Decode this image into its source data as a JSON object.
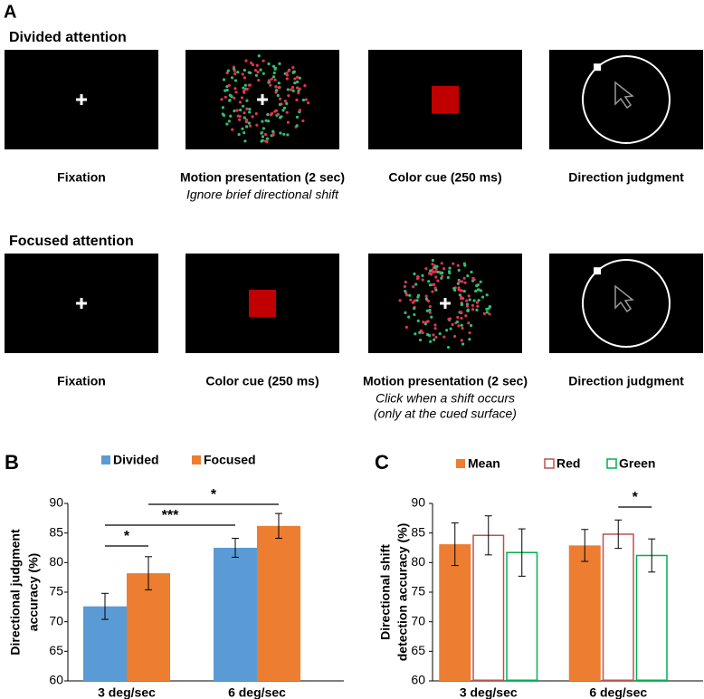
{
  "panel_a": {
    "label": "A",
    "rows": [
      {
        "title": "Divided attention",
        "screens": [
          {
            "caption": "Fixation"
          },
          {
            "caption": "Motion presentation (2 sec)",
            "note": [
              "Ignore brief directional shift"
            ]
          },
          {
            "caption": "Color cue (250 ms)"
          },
          {
            "caption": "Direction judgment"
          }
        ]
      },
      {
        "title": "Focused attention",
        "screens": [
          {
            "caption": "Fixation"
          },
          {
            "caption": "Color cue (250 ms)"
          },
          {
            "caption": "Motion presentation (2 sec)",
            "note": [
              "Click when a shift occurs",
              "(only at the cued surface)"
            ]
          },
          {
            "caption": "Direction judgment"
          }
        ]
      }
    ]
  },
  "chart_data": [
    {
      "type": "bar",
      "label": "B",
      "ylabel": [
        "Directional judgment",
        "accuracy (%)"
      ],
      "categories": [
        "3 deg/sec",
        "6 deg/sec"
      ],
      "series": [
        {
          "name": "Divided",
          "color": "#5b9bd5",
          "filled": true,
          "values": [
            72.6,
            82.5
          ],
          "errors": [
            2.2,
            1.6
          ]
        },
        {
          "name": "Focused",
          "color": "#ed7d31",
          "filled": true,
          "values": [
            78.2,
            86.2
          ],
          "errors": [
            2.8,
            2.1
          ]
        }
      ],
      "ylim": [
        60,
        90
      ],
      "yticks": [
        60,
        65,
        70,
        75,
        80,
        85,
        90
      ],
      "annotations": [
        {
          "text": "*",
          "from": [
            0,
            0
          ],
          "to": [
            0,
            1
          ]
        },
        {
          "text": "***",
          "from": [
            0,
            0
          ],
          "to": [
            1,
            0
          ]
        },
        {
          "text": "*",
          "from": [
            0,
            1
          ],
          "to": [
            1,
            1
          ]
        }
      ]
    },
    {
      "type": "bar",
      "label": "C",
      "ylabel": [
        "Directional shift",
        "detection accuracy (%)"
      ],
      "categories": [
        "3 deg/sec",
        "6 deg/sec"
      ],
      "series": [
        {
          "name": "Mean",
          "color": "#ed7d31",
          "filled": true,
          "values": [
            83.1,
            82.9
          ],
          "errors": [
            3.6,
            2.7
          ]
        },
        {
          "name": "Red",
          "color": "#b85450",
          "filled": false,
          "values": [
            84.6,
            84.8
          ],
          "errors": [
            3.3,
            2.4
          ]
        },
        {
          "name": "Green",
          "color": "#00b050",
          "filled": false,
          "values": [
            81.7,
            81.2
          ],
          "errors": [
            4.0,
            2.8
          ]
        }
      ],
      "ylim": [
        60,
        90
      ],
      "yticks": [
        60,
        65,
        70,
        75,
        80,
        85,
        90
      ],
      "annotations": [
        {
          "text": "*",
          "from": [
            1,
            1
          ],
          "to": [
            1,
            2
          ]
        }
      ]
    }
  ]
}
